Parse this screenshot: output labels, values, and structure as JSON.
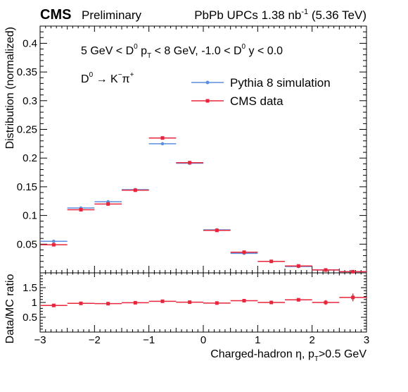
{
  "header": {
    "cms": "CMS",
    "preliminary": "Preliminary",
    "lumi_main": "PbPb UPCs 1.38 nb",
    "lumi_sup": "-1",
    "lumi_energy": " (5.36 TeV)"
  },
  "annotations": {
    "kin_a": "5 GeV < D",
    "kin_a_sup": "0",
    "kin_b": " p",
    "kin_b_sub": "T",
    "kin_c": " < 8 GeV, -1.0 < D",
    "kin_c_sup": "0",
    "kin_d": " y < 0.0",
    "decay_d": "D",
    "decay_d_sup": "0",
    "decay_arrow": " → K",
    "decay_k_sup": "−",
    "decay_pi": "π",
    "decay_pi_sup": "+"
  },
  "legend": {
    "placement": "top-right",
    "items": [
      {
        "label": "Pythia 8 simulation",
        "color": "#5b8fe0"
      },
      {
        "label": "CMS data",
        "color": "#e8253a"
      }
    ]
  },
  "axis_labels": {
    "ylabel_top": "Distribution (normalized)",
    "ylabel_bottom": "Data/MC ratio",
    "xlabel_a": "Charged-hadron η, p",
    "xlabel_sub": "T",
    "xlabel_b": ">0.5 GeV"
  },
  "chart_data": [
    {
      "type": "scatter",
      "panel": "main",
      "xlim": [
        -3,
        3
      ],
      "ylim": [
        0,
        0.43
      ],
      "x_bin_edges": [
        -3.0,
        -2.5,
        -2.0,
        -1.5,
        -1.0,
        -0.5,
        0.0,
        0.5,
        1.0,
        1.5,
        2.0,
        2.5,
        3.0
      ],
      "x_ticks": [
        "−3",
        "−2",
        "−1",
        "0",
        "1",
        "2",
        "3"
      ],
      "y_ticks": [
        "0.05",
        "0.1",
        "0.15",
        "0.2",
        "0.25",
        "0.3",
        "0.35",
        "0.4"
      ],
      "y_tick_values": [
        0.05,
        0.1,
        0.15,
        0.2,
        0.25,
        0.3,
        0.35,
        0.4
      ],
      "series": [
        {
          "name": "Pythia 8 simulation",
          "color": "#5b8fe0",
          "values": [
            0.055,
            0.113,
            0.124,
            0.145,
            0.225,
            0.191,
            0.075,
            0.034,
            0.02,
            0.011,
            0.005,
            0.002
          ]
        },
        {
          "name": "CMS data",
          "color": "#e8253a",
          "values": [
            0.049,
            0.11,
            0.12,
            0.144,
            0.235,
            0.192,
            0.074,
            0.036,
            0.02,
            0.012,
            0.005,
            0.002
          ]
        }
      ]
    },
    {
      "type": "scatter",
      "panel": "ratio",
      "xlim": [
        -3,
        3
      ],
      "ylim": [
        0,
        2
      ],
      "y_ticks": [
        "0.5",
        "1",
        "1.5"
      ],
      "y_tick_values": [
        0.5,
        1.0,
        1.5
      ],
      "series": [
        {
          "name": "Data/MC ratio",
          "color": "#e8253a",
          "values": [
            0.9,
            0.97,
            0.96,
            0.99,
            1.04,
            1.01,
            0.98,
            1.06,
            1.0,
            1.09,
            1.0,
            1.17
          ],
          "errors": [
            0.03,
            0.02,
            0.02,
            0.02,
            0.02,
            0.02,
            0.02,
            0.03,
            0.03,
            0.04,
            0.08,
            0.13
          ]
        }
      ]
    }
  ]
}
